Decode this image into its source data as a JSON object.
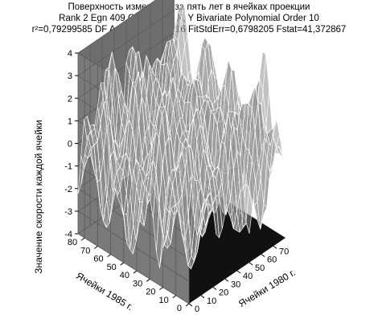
{
  "chart_data": {
    "type": "surface",
    "title": "Поверхность изменений за пять лет в ячейках проекции",
    "subtitle": "Rank 2 Egn 409 Chebyshev X, Y Bivariate Polynomial Order 10",
    "stats": "r²=0,79299585 DF Adj r²=0,77350616 FitStdErr=0,6798205 Fstat=41,372867",
    "zlabel": "Значение скорости каждой ячейки",
    "xlabel": "Ячейки 1980 г.",
    "ylabel": "Ячейки 1985 г.",
    "x_ticks": [
      "0",
      "10",
      "20",
      "30",
      "40",
      "50",
      "60",
      "70"
    ],
    "y_ticks": [
      "0",
      "10",
      "20",
      "30",
      "40",
      "50",
      "60",
      "70",
      "80"
    ],
    "z_ticks": [
      "-4",
      "-3",
      "-2",
      "-1",
      "0",
      "1",
      "2",
      "3",
      "4"
    ],
    "xlim": [
      0,
      80
    ],
    "ylim": [
      0,
      85
    ],
    "zlim": [
      -4,
      4
    ],
    "grid": true,
    "colors": {
      "wall": "#6e6e6e",
      "floor": "#111111",
      "mesh": "#ffffff",
      "grid": "#5a5a5a"
    }
  }
}
